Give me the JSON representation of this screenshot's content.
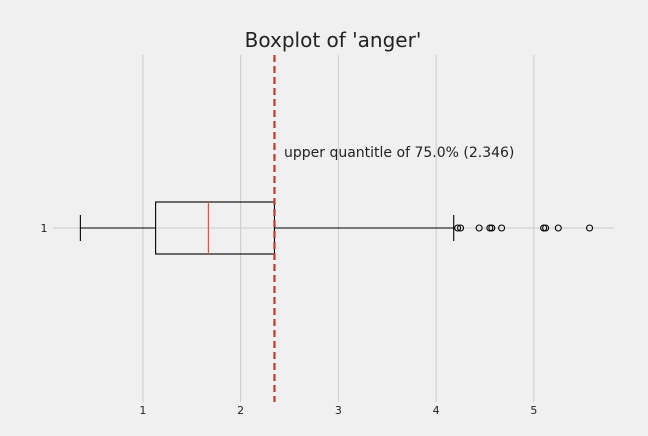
{
  "chart_data": {
    "type": "boxplot",
    "orientation": "horizontal",
    "title": "Boxplot of 'anger'",
    "xlabel": "",
    "ylabel": "",
    "xlim": [
      0.08,
      5.82
    ],
    "x_ticks": [
      1,
      2,
      3,
      4,
      5
    ],
    "y_ticks": [
      "1"
    ],
    "grid": true,
    "series": [
      {
        "category": "1",
        "whisker_low": 0.36,
        "q1": 1.13,
        "median": 1.67,
        "q3": 2.346,
        "whisker_high": 4.18,
        "outliers": [
          4.22,
          4.25,
          4.44,
          4.55,
          4.57,
          4.67,
          5.1,
          5.12,
          5.25,
          5.57
        ]
      }
    ],
    "reference_line": {
      "x": 2.346,
      "style": "dashed"
    },
    "annotation": "upper quantitle of 75.0% (2.346)"
  },
  "colors": {
    "background": "#f0f0f0",
    "grid": "#cbcbcb",
    "box": "#000000",
    "median": "#fc4f30",
    "reference_line": "#c0392b",
    "text": "#222222"
  }
}
